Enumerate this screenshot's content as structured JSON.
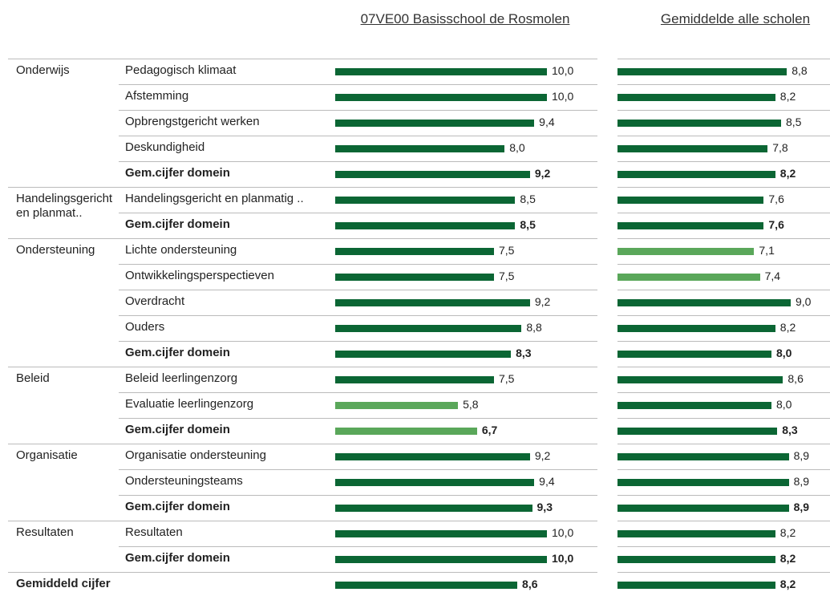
{
  "chart_data": {
    "type": "bar",
    "orientation": "horizontal",
    "groups": [
      {
        "label": "Onderwijs",
        "count": 5
      },
      {
        "label": "Handelingsgericht en planmat..",
        "count": 2
      },
      {
        "label": "Ondersteuning",
        "count": 5
      },
      {
        "label": "Beleid",
        "count": 3
      },
      {
        "label": "Organisatie",
        "count": 3
      },
      {
        "label": "Resultaten",
        "count": 2
      },
      {
        "label": "Gemiddeld cijfer",
        "count": 1
      }
    ],
    "categories": [
      "Pedagogisch klimaat",
      "Afstemming",
      "Opbrengstgericht werken",
      "Deskundigheid",
      "Gem.cijfer domein",
      "Handelingsgericht en planmatig ..",
      "Gem.cijfer domein",
      "Lichte ondersteuning",
      "Ontwikkelingsperspectieven",
      "Overdracht",
      "Ouders",
      "Gem.cijfer domein",
      "Beleid leerlingenzorg",
      "Evaluatie leerlingenzorg",
      "Gem.cijfer domein",
      "Organisatie ondersteuning",
      "Ondersteuningsteams",
      "Gem.cijfer domein",
      "Resultaten",
      "Gem.cijfer domein",
      null
    ],
    "bold": [
      false,
      false,
      false,
      false,
      true,
      false,
      true,
      false,
      false,
      false,
      false,
      true,
      false,
      false,
      true,
      false,
      false,
      true,
      false,
      true,
      true
    ],
    "series": [
      {
        "name": "07VE00 Basisschool de Rosmolen",
        "values": [
          10,
          10,
          9.4,
          8,
          9.2,
          8.5,
          8.5,
          7.5,
          7.5,
          9.2,
          8.8,
          8.3,
          7.5,
          5.8,
          6.7,
          9.2,
          9.4,
          9.3,
          10,
          10,
          8.6
        ],
        "value_labels": [
          "10,0",
          "10,0",
          "9,4",
          "8,0",
          "9,2",
          "8,5",
          "8,5",
          "7,5",
          "7,5",
          "9,2",
          "8,8",
          "8,3",
          "7,5",
          "5,8",
          "6,7",
          "9,2",
          "9,4",
          "9,3",
          "10,0",
          "10,0",
          "8,6"
        ],
        "colors": [
          "#0b6634",
          "#0b6634",
          "#0b6634",
          "#0b6634",
          "#0b6634",
          "#0b6634",
          "#0b6634",
          "#0b6634",
          "#0b6634",
          "#0b6634",
          "#0b6634",
          "#0b6634",
          "#0b6634",
          "#5aa75a",
          "#5aa75a",
          "#0b6634",
          "#0b6634",
          "#0b6634",
          "#0b6634",
          "#0b6634",
          "#0b6634"
        ]
      },
      {
        "name": "Gemiddelde alle scholen",
        "values": [
          8.8,
          8.2,
          8.5,
          7.8,
          8.2,
          7.6,
          7.6,
          7.1,
          7.4,
          9.0,
          8.2,
          8.0,
          8.6,
          8.0,
          8.3,
          8.9,
          8.9,
          8.9,
          8.2,
          8.2,
          8.2
        ],
        "value_labels": [
          "8,8",
          "8,2",
          "8,5",
          "7,8",
          "8,2",
          "7,6",
          "7,6",
          "7,1",
          "7,4",
          "9,0",
          "8,2",
          "8,0",
          "8,6",
          "8,0",
          "8,3",
          "8,9",
          "8,9",
          "8,9",
          "8,2",
          "8,2",
          "8,2"
        ],
        "colors": [
          "#0b6634",
          "#0b6634",
          "#0b6634",
          "#0b6634",
          "#0b6634",
          "#0b6634",
          "#0b6634",
          "#5aa75a",
          "#5aa75a",
          "#0b6634",
          "#0b6634",
          "#0b6634",
          "#0b6634",
          "#0b6634",
          "#0b6634",
          "#0b6634",
          "#0b6634",
          "#0b6634",
          "#0b6634",
          "#0b6634",
          "#0b6634"
        ]
      }
    ]
  }
}
